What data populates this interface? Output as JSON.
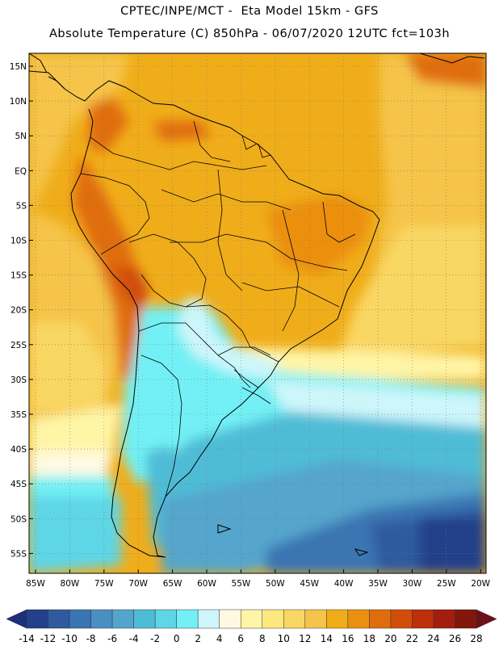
{
  "header": {
    "line1": "CPTEC/INPE/MCT -  Eta Model 15km - GFS",
    "line2": "Absolute Temperature (C) 850hPa - 06/07/2020 12UTC fct=103h"
  },
  "map": {
    "lat_labels": [
      "15N",
      "10N",
      "5N",
      "EQ",
      "5S",
      "10S",
      "15S",
      "20S",
      "25S",
      "30S",
      "35S",
      "40S",
      "45S",
      "50S",
      "55S"
    ],
    "lon_labels": [
      "85W",
      "80W",
      "75W",
      "70W",
      "65W",
      "60W",
      "55W",
      "50W",
      "45W",
      "40W",
      "35W",
      "30W",
      "25W",
      "20W"
    ]
  },
  "colorbar": {
    "labels": [
      "-14",
      "-12",
      "-10",
      "-8",
      "-6",
      "-4",
      "-2",
      "0",
      "2",
      "4",
      "6",
      "8",
      "10",
      "12",
      "14",
      "16",
      "18",
      "20",
      "22",
      "24",
      "26",
      "28"
    ],
    "colors": [
      "#23408a",
      "#2f5a9e",
      "#3a74b2",
      "#4a8fc2",
      "#54a5cc",
      "#4fbcd6",
      "#5fd6e6",
      "#72f0f5",
      "#cdf6fa",
      "#fff9e2",
      "#fff5a6",
      "#fde77f",
      "#f9d764",
      "#f5c44a",
      "#f0ad1a",
      "#eb8f10",
      "#e06d0c",
      "#d24d0a",
      "#bd300a",
      "#a31e0e",
      "#82160c"
    ],
    "low_arrow_color": "#1c2f7a",
    "high_arrow_color": "#6e0f1c"
  }
}
